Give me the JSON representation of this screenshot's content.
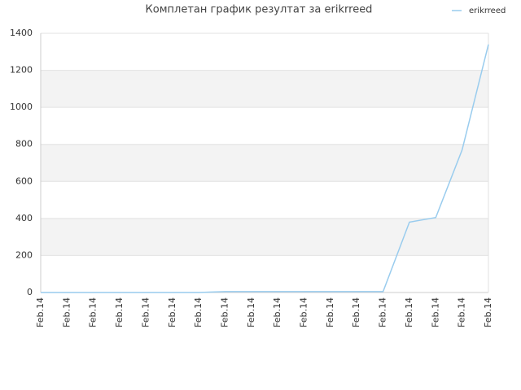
{
  "chart_data": {
    "type": "line",
    "title": "Комплетан график резултат за erikrreed",
    "categories": [
      "Feb.14",
      "Feb.14",
      "Feb.14",
      "Feb.14",
      "Feb.14",
      "Feb.14",
      "Feb.14",
      "Feb.14",
      "Feb.14",
      "Feb.14",
      "Feb.14",
      "Feb.14",
      "Feb.14",
      "Feb.14",
      "Feb.14",
      "Feb.14",
      "Feb.14",
      "Feb.14"
    ],
    "series": [
      {
        "name": "erikrreed",
        "color": "#99ccee",
        "values": [
          0,
          0,
          0,
          0,
          0,
          0,
          0,
          5,
          5,
          5,
          5,
          5,
          5,
          5,
          380,
          405,
          770,
          1340
        ]
      }
    ],
    "ylim": [
      0,
      1400
    ],
    "yticks": [
      0,
      200,
      400,
      600,
      800,
      1000,
      1200,
      1400
    ],
    "grid": true,
    "legend": "top-right"
  }
}
